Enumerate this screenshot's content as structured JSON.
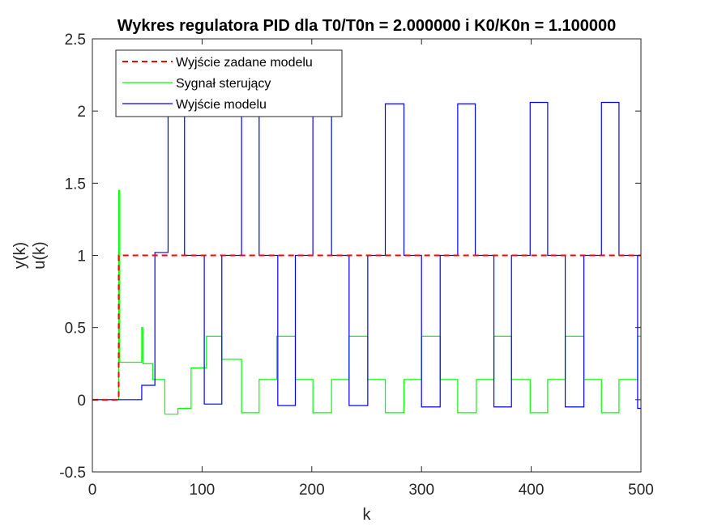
{
  "chart_data": {
    "type": "line",
    "title": "Wykres regulatora PID dla T0/T0n = 2.000000 i K0/K0n = 1.100000",
    "xlabel": "k",
    "ylabel": [
      "y(k)",
      "u(k)"
    ],
    "xlim": [
      0,
      500
    ],
    "ylim": [
      -0.5,
      2.5
    ],
    "xticks": [
      0,
      100,
      200,
      300,
      400,
      500
    ],
    "yticks": [
      -0.5,
      0,
      0.5,
      1,
      1.5,
      2,
      2.5
    ],
    "xtick_labels": [
      "0",
      "100",
      "200",
      "300",
      "400",
      "500"
    ],
    "ytick_labels": [
      "-0.5",
      "0",
      "0.5",
      "1",
      "1.5",
      "2",
      "2.5"
    ],
    "grid": false,
    "legend_placement": "top-left",
    "series": [
      {
        "name": "Wyjście zadane modelu",
        "color": "#ff0000",
        "style": "dashed",
        "render": "step",
        "x": [
          0,
          24,
          500
        ],
        "y": [
          0,
          1,
          1
        ]
      },
      {
        "name": "Sygnał sterujący",
        "color": "#00ff00",
        "style": "solid",
        "render": "step",
        "x": [
          0,
          24,
          24,
          25,
          45,
          46,
          55,
          66,
          78,
          90,
          104,
          118,
          136,
          152,
          168,
          185,
          201,
          218,
          234,
          251,
          267,
          284,
          300,
          317,
          333,
          350,
          366,
          382,
          399,
          415,
          431,
          448,
          464,
          480,
          497,
          500
        ],
        "y": [
          0,
          0,
          1.45,
          0.26,
          0.5,
          0.25,
          0.14,
          -0.1,
          -0.06,
          0.22,
          0.44,
          0.28,
          -0.09,
          0.14,
          0.44,
          0.14,
          -0.09,
          0.14,
          0.44,
          0.14,
          -0.09,
          0.14,
          0.44,
          0.14,
          -0.09,
          0.14,
          0.44,
          0.14,
          -0.09,
          0.14,
          0.44,
          0.14,
          -0.09,
          0.14,
          0.44,
          0.44
        ]
      },
      {
        "name": "Wyjście modelu",
        "color": "#0000ff",
        "style": "solid",
        "render": "step",
        "x": [
          0,
          44,
          45,
          57,
          69,
          84,
          102,
          118,
          136,
          152,
          169,
          185,
          201,
          218,
          234,
          251,
          267,
          284,
          300,
          317,
          333,
          349,
          366,
          382,
          399,
          415,
          431,
          448,
          464,
          480,
          497,
          500
        ],
        "y": [
          0,
          0,
          0.1,
          1.02,
          2.02,
          1.0,
          -0.03,
          1.0,
          2.04,
          1.0,
          -0.04,
          1.0,
          2.05,
          1.0,
          -0.04,
          1.0,
          2.05,
          1.0,
          -0.05,
          1.0,
          2.05,
          1.0,
          -0.05,
          1.0,
          2.06,
          1.0,
          -0.05,
          1.0,
          2.06,
          1.0,
          -0.06,
          -0.06
        ]
      }
    ]
  }
}
